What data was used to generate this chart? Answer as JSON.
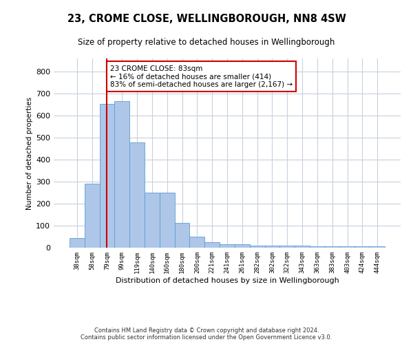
{
  "title": "23, CROME CLOSE, WELLINGBOROUGH, NN8 4SW",
  "subtitle": "Size of property relative to detached houses in Wellingborough",
  "xlabel": "Distribution of detached houses by size in Wellingborough",
  "ylabel": "Number of detached properties",
  "categories": [
    "38sqm",
    "58sqm",
    "79sqm",
    "99sqm",
    "119sqm",
    "140sqm",
    "160sqm",
    "180sqm",
    "200sqm",
    "221sqm",
    "241sqm",
    "261sqm",
    "282sqm",
    "302sqm",
    "322sqm",
    "343sqm",
    "363sqm",
    "383sqm",
    "403sqm",
    "424sqm",
    "444sqm"
  ],
  "values": [
    45,
    290,
    655,
    665,
    480,
    250,
    250,
    113,
    50,
    25,
    15,
    15,
    8,
    8,
    8,
    8,
    5,
    5,
    5,
    5,
    5
  ],
  "bar_color": "#aec6e8",
  "bar_edge_color": "#5a9fd4",
  "highlight_line_color": "#cc0000",
  "annotation_text": "23 CROME CLOSE: 83sqm\n← 16% of detached houses are smaller (414)\n83% of semi-detached houses are larger (2,167) →",
  "annotation_box_color": "#ffffff",
  "annotation_box_edge_color": "#cc0000",
  "red_line_x": 2,
  "ylim": [
    0,
    860
  ],
  "yticks": [
    0,
    100,
    200,
    300,
    400,
    500,
    600,
    700,
    800
  ],
  "footnote": "Contains HM Land Registry data © Crown copyright and database right 2024.\nContains public sector information licensed under the Open Government Licence v3.0.",
  "background_color": "#ffffff",
  "grid_color": "#c8d0dc"
}
